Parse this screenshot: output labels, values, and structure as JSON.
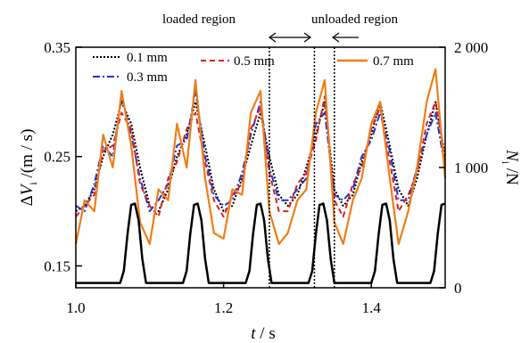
{
  "chart_data": {
    "type": "line",
    "xlabel": "t / s",
    "ylabel_left": "ΔV i /(m/s)",
    "ylabel_right": "N i /N",
    "xlim": [
      1.0,
      1.5
    ],
    "ylim_left": [
      0.13,
      0.35
    ],
    "ylim_right": [
      0,
      2000
    ],
    "x_ticks": [
      1.0,
      1.2,
      1.4
    ],
    "x_tick_labels": [
      "1.0",
      "1.2",
      "1.4"
    ],
    "y_left_ticks": [
      0.15,
      0.25,
      0.35
    ],
    "y_left_tick_labels": [
      "0.15",
      "0.25",
      "0.35"
    ],
    "y_right_ticks": [
      0,
      1000,
      2000
    ],
    "y_right_tick_labels": [
      "0",
      "1 000",
      "2 000"
    ],
    "legend_placement": "top",
    "grid": false,
    "series": [
      {
        "name": "0.1 mm",
        "style": "dotted",
        "color": "#000000",
        "axis": "left",
        "x": [
          1.0,
          1.012,
          1.025,
          1.037,
          1.05,
          1.062,
          1.075,
          1.087,
          1.1,
          1.112,
          1.125,
          1.137,
          1.15,
          1.162,
          1.175,
          1.187,
          1.2,
          1.212,
          1.225,
          1.237,
          1.25,
          1.262,
          1.275,
          1.287,
          1.3,
          1.312,
          1.325,
          1.337,
          1.35,
          1.362,
          1.375,
          1.387,
          1.4,
          1.412,
          1.425,
          1.437,
          1.45,
          1.462,
          1.475,
          1.487,
          1.5
        ],
        "y": [
          0.2,
          0.205,
          0.22,
          0.25,
          0.27,
          0.3,
          0.28,
          0.24,
          0.205,
          0.2,
          0.22,
          0.25,
          0.27,
          0.3,
          0.26,
          0.22,
          0.2,
          0.205,
          0.23,
          0.26,
          0.29,
          0.25,
          0.215,
          0.205,
          0.215,
          0.24,
          0.27,
          0.3,
          0.22,
          0.205,
          0.215,
          0.245,
          0.27,
          0.3,
          0.26,
          0.22,
          0.205,
          0.23,
          0.27,
          0.3,
          0.25
        ]
      },
      {
        "name": "0.3 mm",
        "style": "dash-dot",
        "color": "#1f35d6",
        "axis": "left",
        "x": [
          1.0,
          1.012,
          1.025,
          1.037,
          1.05,
          1.062,
          1.075,
          1.087,
          1.1,
          1.112,
          1.125,
          1.137,
          1.15,
          1.162,
          1.175,
          1.187,
          1.2,
          1.212,
          1.225,
          1.237,
          1.25,
          1.262,
          1.275,
          1.287,
          1.3,
          1.312,
          1.325,
          1.337,
          1.35,
          1.362,
          1.375,
          1.387,
          1.4,
          1.412,
          1.425,
          1.437,
          1.45,
          1.462,
          1.475,
          1.487,
          1.5
        ],
        "y": [
          0.205,
          0.2,
          0.225,
          0.26,
          0.25,
          0.305,
          0.27,
          0.23,
          0.2,
          0.21,
          0.225,
          0.26,
          0.265,
          0.31,
          0.25,
          0.215,
          0.205,
          0.21,
          0.235,
          0.27,
          0.3,
          0.24,
          0.21,
          0.21,
          0.22,
          0.23,
          0.28,
          0.29,
          0.215,
          0.21,
          0.22,
          0.25,
          0.265,
          0.29,
          0.255,
          0.21,
          0.21,
          0.24,
          0.27,
          0.29,
          0.24
        ]
      },
      {
        "name": "0.5 mm",
        "style": "dashed",
        "color": "#e02020",
        "axis": "left",
        "x": [
          1.0,
          1.012,
          1.025,
          1.037,
          1.05,
          1.062,
          1.075,
          1.087,
          1.1,
          1.112,
          1.125,
          1.137,
          1.15,
          1.162,
          1.175,
          1.187,
          1.2,
          1.212,
          1.225,
          1.237,
          1.25,
          1.262,
          1.275,
          1.287,
          1.3,
          1.312,
          1.325,
          1.337,
          1.35,
          1.362,
          1.375,
          1.387,
          1.4,
          1.412,
          1.425,
          1.437,
          1.45,
          1.462,
          1.475,
          1.487,
          1.5
        ],
        "y": [
          0.195,
          0.205,
          0.215,
          0.255,
          0.26,
          0.29,
          0.275,
          0.225,
          0.205,
          0.195,
          0.23,
          0.245,
          0.275,
          0.29,
          0.245,
          0.21,
          0.195,
          0.215,
          0.225,
          0.275,
          0.295,
          0.235,
          0.2,
          0.2,
          0.225,
          0.235,
          0.265,
          0.305,
          0.21,
          0.195,
          0.225,
          0.24,
          0.275,
          0.295,
          0.245,
          0.2,
          0.215,
          0.235,
          0.28,
          0.3,
          0.245
        ]
      },
      {
        "name": "0.7 mm",
        "style": "solid",
        "color": "#f07d1a",
        "axis": "left",
        "x": [
          1.0,
          1.012,
          1.025,
          1.037,
          1.05,
          1.062,
          1.075,
          1.087,
          1.1,
          1.112,
          1.125,
          1.137,
          1.15,
          1.162,
          1.175,
          1.187,
          1.2,
          1.212,
          1.225,
          1.237,
          1.25,
          1.262,
          1.275,
          1.287,
          1.3,
          1.312,
          1.325,
          1.337,
          1.35,
          1.362,
          1.375,
          1.387,
          1.4,
          1.412,
          1.425,
          1.437,
          1.45,
          1.462,
          1.475,
          1.487,
          1.5
        ],
        "y": [
          0.17,
          0.21,
          0.2,
          0.27,
          0.24,
          0.31,
          0.26,
          0.19,
          0.17,
          0.22,
          0.21,
          0.28,
          0.24,
          0.32,
          0.23,
          0.18,
          0.175,
          0.22,
          0.215,
          0.29,
          0.31,
          0.2,
          0.17,
          0.18,
          0.21,
          0.22,
          0.29,
          0.32,
          0.19,
          0.17,
          0.21,
          0.23,
          0.28,
          0.3,
          0.23,
          0.17,
          0.2,
          0.24,
          0.3,
          0.33,
          0.23
        ]
      },
      {
        "name": "",
        "style": "solid",
        "color": "#000000",
        "axis": "right",
        "x": [
          1.0,
          1.06,
          1.065,
          1.07,
          1.075,
          1.08,
          1.085,
          1.09,
          1.095,
          1.1,
          1.145,
          1.15,
          1.155,
          1.16,
          1.165,
          1.17,
          1.175,
          1.18,
          1.185,
          1.23,
          1.235,
          1.24,
          1.245,
          1.25,
          1.255,
          1.26,
          1.265,
          1.27,
          1.315,
          1.32,
          1.325,
          1.33,
          1.335,
          1.34,
          1.345,
          1.35,
          1.355,
          1.4,
          1.405,
          1.41,
          1.415,
          1.42,
          1.425,
          1.43,
          1.435,
          1.44,
          1.48,
          1.485,
          1.49,
          1.495,
          1.5
        ],
        "y": [
          40,
          40,
          140,
          450,
          690,
          700,
          560,
          240,
          40,
          40,
          40,
          140,
          450,
          690,
          700,
          560,
          240,
          40,
          40,
          40,
          140,
          450,
          690,
          700,
          560,
          240,
          40,
          40,
          40,
          140,
          450,
          690,
          700,
          560,
          240,
          40,
          40,
          40,
          140,
          450,
          690,
          700,
          560,
          240,
          40,
          40,
          40,
          140,
          450,
          690,
          700
        ]
      }
    ],
    "annotations": {
      "loaded_label": "loaded region",
      "unloaded_label": "unloaded region",
      "vlines": [
        1.262,
        1.323,
        1.35
      ]
    }
  }
}
